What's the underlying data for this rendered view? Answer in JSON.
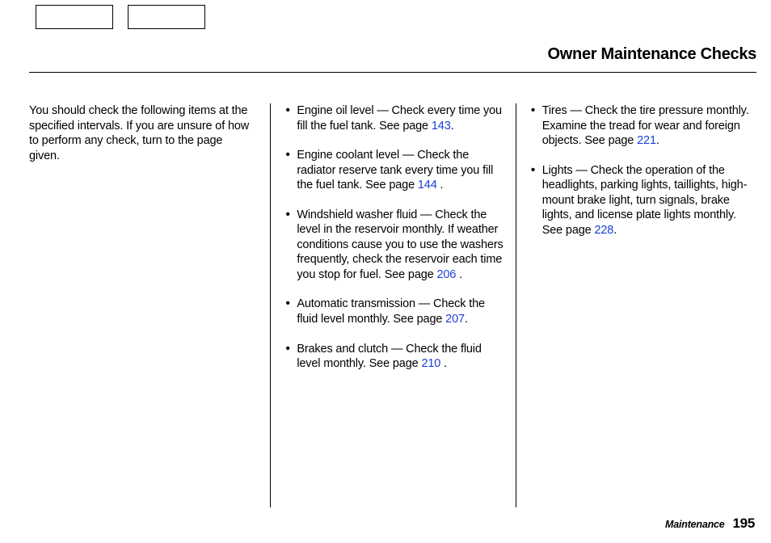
{
  "page": {
    "title": "Owner Maintenance Checks",
    "footer_label": "Maintenance",
    "footer_page": "195"
  },
  "link_color": "#1a3fd6",
  "intro": "You should check the following items at the specified intervals. If you are unsure of how to perform any check, turn to the page given.",
  "col2_items": [
    {
      "text_before": "Engine oil level — Check every time you fill the fuel tank. See page ",
      "page_link": "143",
      "text_after": "."
    },
    {
      "text_before": "Engine coolant level — Check the radiator reserve tank every time you fill the fuel tank. See page ",
      "page_link": "144",
      "text_after": " ."
    },
    {
      "text_before": "Windshield washer fluid — Check the level in the reservoir monthly. If weather conditions cause you to use the washers frequently, check the reservoir each time you stop for fuel. See page ",
      "page_link": "206",
      "text_after": " ."
    },
    {
      "text_before": "Automatic transmission — Check the fluid level monthly. See page ",
      "page_link": "207",
      "text_after": "."
    },
    {
      "text_before": "Brakes and clutch — Check the fluid level monthly. See page ",
      "page_link": "210",
      "text_after": " ."
    }
  ],
  "col3_items": [
    {
      "text_before": "Tires — Check the tire pressure monthly. Examine the tread for wear and foreign objects. See page ",
      "page_link": "221",
      "text_after": "."
    },
    {
      "text_before": "Lights — Check the operation of the headlights, parking lights, taillights, high-mount brake light, turn signals, brake lights, and license plate lights monthly. See page ",
      "page_link": "228",
      "text_after": "."
    }
  ]
}
